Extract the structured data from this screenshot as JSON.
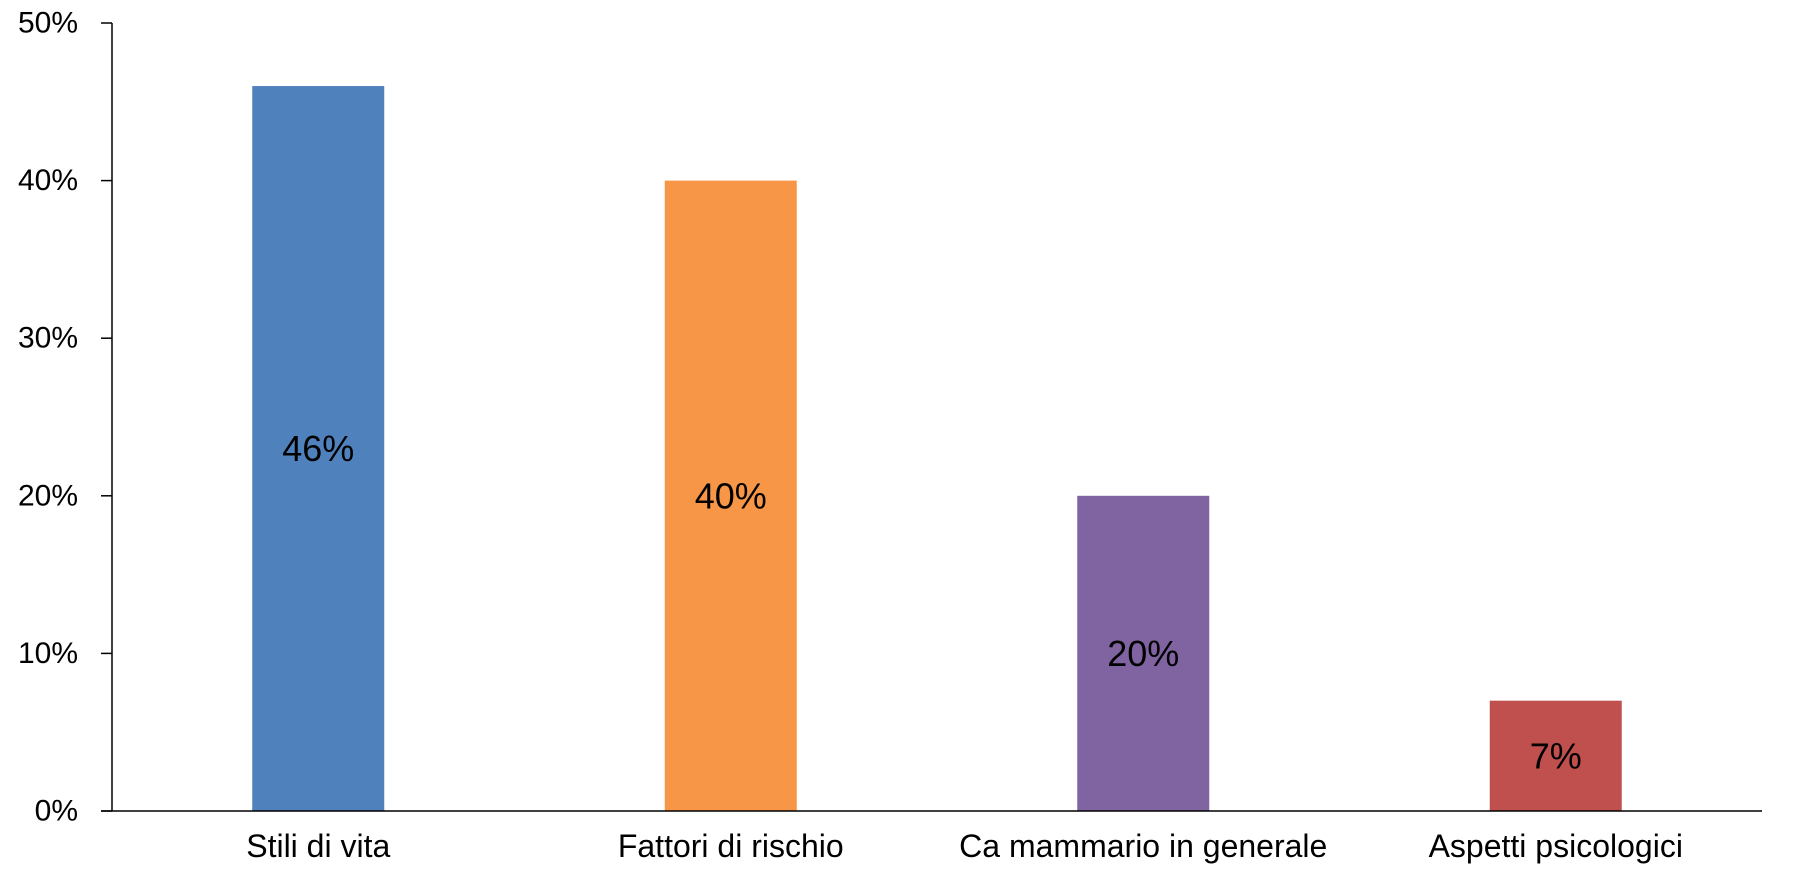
{
  "chart_data": {
    "type": "bar",
    "title": "",
    "xlabel": "",
    "ylabel": "",
    "categories": [
      "Stili di vita",
      "Fattori di rischio",
      "Ca mammario in generale",
      "Aspetti psicologici"
    ],
    "values": [
      46,
      40,
      20,
      7
    ],
    "data_labels": [
      "46%",
      "40%",
      "20%",
      "7%"
    ],
    "colors": [
      "#4f81bd",
      "#f79646",
      "#8064a2",
      "#c0504d"
    ],
    "ylim": [
      0,
      50
    ],
    "yticks": [
      0,
      10,
      20,
      30,
      40,
      50
    ],
    "ytick_labels": [
      "0%",
      "10%",
      "20%",
      "30%",
      "40%",
      "50%"
    ],
    "grid": false,
    "legend": "none"
  }
}
